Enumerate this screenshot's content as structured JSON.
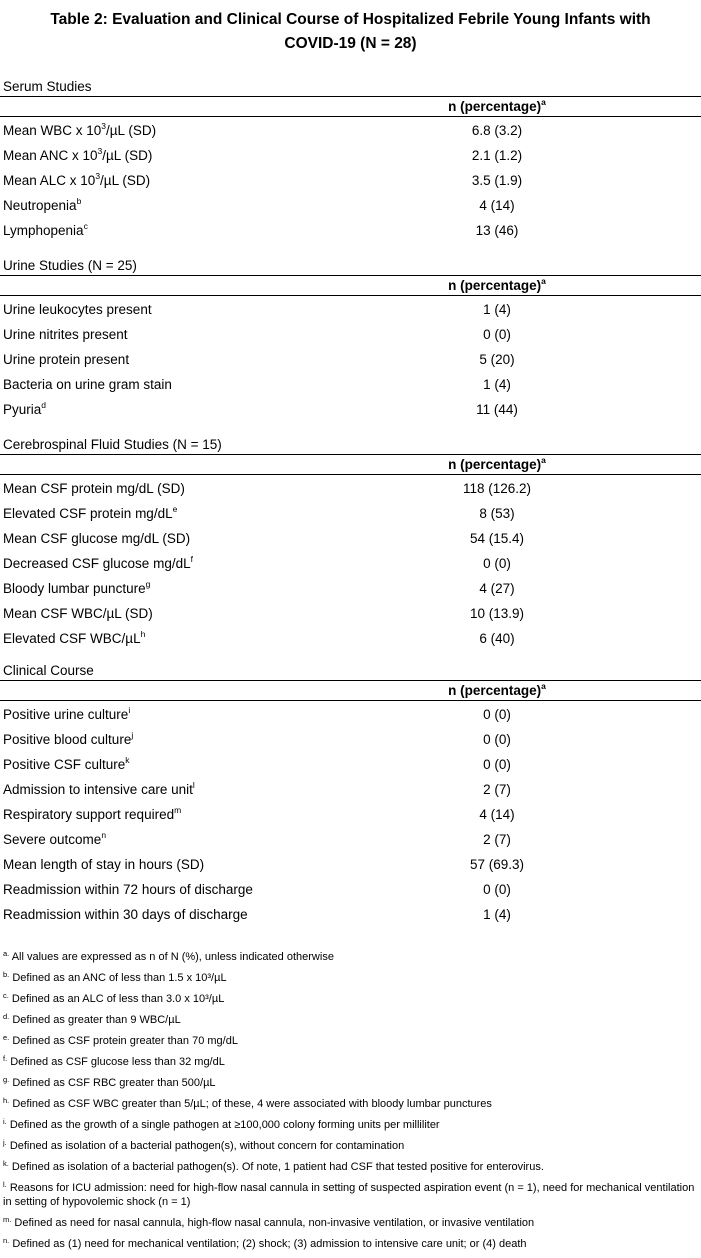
{
  "title": {
    "line1": "Table 2: Evaluation and Clinical Course of Hospitalized Febrile Young Infants with",
    "line2": "COVID-19 (N = 28)"
  },
  "sections": [
    {
      "title": "Serum Studies",
      "column_header": "n (percentage)",
      "column_header_mark": "a",
      "rows": [
        {
          "label": "Mean WBC x 10",
          "sup": "3",
          "label_suffix": "/µL (SD)",
          "value": "6.8 (3.2)"
        },
        {
          "label": "Mean ANC x 10",
          "sup": "3",
          "label_suffix": "/µL (SD)",
          "value": "2.1 (1.2)"
        },
        {
          "label": "Mean ALC x 10",
          "sup": "3",
          "label_suffix": "/µL (SD)",
          "value": "3.5 (1.9)"
        },
        {
          "label": "Neutropenia",
          "sup": "b",
          "label_suffix": "",
          "value": "4 (14)"
        },
        {
          "label": "Lymphopenia",
          "sup": "c",
          "label_suffix": "",
          "value": "13 (46)"
        }
      ]
    },
    {
      "title": "Urine Studies (N = 25)",
      "column_header": "n (percentage)",
      "column_header_mark": "a",
      "rows": [
        {
          "label": "Urine leukocytes present",
          "sup": "",
          "label_suffix": "",
          "value": "1 (4)"
        },
        {
          "label": "Urine nitrites present",
          "sup": "",
          "label_suffix": "",
          "value": "0 (0)"
        },
        {
          "label": "Urine protein present",
          "sup": "",
          "label_suffix": "",
          "value": "5 (20)"
        },
        {
          "label": "Bacteria on urine gram stain",
          "sup": "",
          "label_suffix": "",
          "value": "1 (4)"
        },
        {
          "label": "Pyuria",
          "sup": "d",
          "label_suffix": "",
          "value": "11 (44)"
        }
      ]
    },
    {
      "title": "Cerebrospinal Fluid Studies (N = 15)",
      "column_header": "n (percentage)",
      "column_header_mark": "a",
      "rows": [
        {
          "label": "Mean CSF protein mg/dL (SD)",
          "sup": "",
          "label_suffix": "",
          "value": "118 (126.2)"
        },
        {
          "label": "Elevated CSF protein mg/dL",
          "sup": "e",
          "label_suffix": "",
          "value": "8 (53)"
        },
        {
          "label": "Mean CSF glucose mg/dL (SD)",
          "sup": "",
          "label_suffix": "",
          "value": "54 (15.4)"
        },
        {
          "label": "Decreased CSF glucose mg/dL",
          "sup": "f",
          "label_suffix": "",
          "value": "0 (0)"
        },
        {
          "label": "Bloody lumbar puncture",
          "sup": "g",
          "label_suffix": "",
          "value": "4 (27)"
        },
        {
          "label": "Mean CSF WBC/µL (SD)",
          "sup": "",
          "label_suffix": "",
          "value": "10 (13.9)"
        },
        {
          "label": "Elevated CSF WBC/µL",
          "sup": "h",
          "label_suffix": "",
          "value": "6 (40)"
        }
      ]
    },
    {
      "title": "Clinical Course",
      "column_header": "n (percentage)",
      "column_header_mark": "a",
      "rows": [
        {
          "label": "Positive urine culture",
          "sup": "i",
          "label_suffix": "",
          "value": "0 (0)"
        },
        {
          "label": "Positive blood culture",
          "sup": "j",
          "label_suffix": "",
          "value": "0 (0)"
        },
        {
          "label": "Positive CSF culture",
          "sup": "k",
          "label_suffix": "",
          "value": "0 (0)"
        },
        {
          "label": "Admission to intensive care unit",
          "sup": "l",
          "label_suffix": "",
          "value": "2 (7)"
        },
        {
          "label": "Respiratory support required",
          "sup": "m",
          "label_suffix": "",
          "value": "4 (14)"
        },
        {
          "label": "Severe outcome",
          "sup": "n",
          "label_suffix": "",
          "value": "2 (7)"
        },
        {
          "label": "Mean length of stay in hours (SD)",
          "sup": "",
          "label_suffix": "",
          "value": "57 (69.3)"
        },
        {
          "label": "Readmission within 72 hours of discharge",
          "sup": "",
          "label_suffix": "",
          "value": "0 (0)"
        },
        {
          "label": "Readmission within 30 days of discharge",
          "sup": "",
          "label_suffix": "",
          "value": "1 (4)"
        }
      ]
    }
  ],
  "footnotes": [
    {
      "mark": "a.",
      "text": "All values are expressed as n of N (%), unless indicated otherwise"
    },
    {
      "mark": "b.",
      "text": "Defined as an ANC of less than 1.5 x 10³/µL"
    },
    {
      "mark": "c.",
      "text": "Defined as an ALC of less than 3.0 x 10³/µL"
    },
    {
      "mark": "d.",
      "text": "Defined as greater than 9 WBC/µL"
    },
    {
      "mark": "e.",
      "text": "Defined as CSF protein greater than 70 mg/dL"
    },
    {
      "mark": "f.",
      "text": "Defined as CSF glucose less than 32 mg/dL"
    },
    {
      "mark": "g.",
      "text": "Defined as CSF RBC greater than 500/µL"
    },
    {
      "mark": "h.",
      "text": "Defined as CSF WBC greater than 5/µL; of these, 4 were associated with bloody lumbar punctures"
    },
    {
      "mark": "i.",
      "text": "Defined as the growth of a single pathogen at ≥100,000 colony forming units per milliliter"
    },
    {
      "mark": "j.",
      "text": "Defined as isolation of a bacterial pathogen(s), without concern for contamination"
    },
    {
      "mark": "k.",
      "text": "Defined as isolation of a bacterial pathogen(s). Of note, 1 patient had CSF that tested positive for enterovirus."
    },
    {
      "mark": "l.",
      "text": "Reasons for ICU admission: need for high-flow nasal cannula in setting of suspected aspiration event (n = 1), need for mechanical ventilation in setting of hypovolemic shock (n = 1)"
    },
    {
      "mark": "m.",
      "text": "Defined as need for nasal cannula, high-flow nasal cannula, non-invasive ventilation, or invasive ventilation"
    },
    {
      "mark": "n.",
      "text": "Defined as (1) need for mechanical ventilation; (2) shock; (3) admission to intensive care unit; or (4) death"
    }
  ]
}
